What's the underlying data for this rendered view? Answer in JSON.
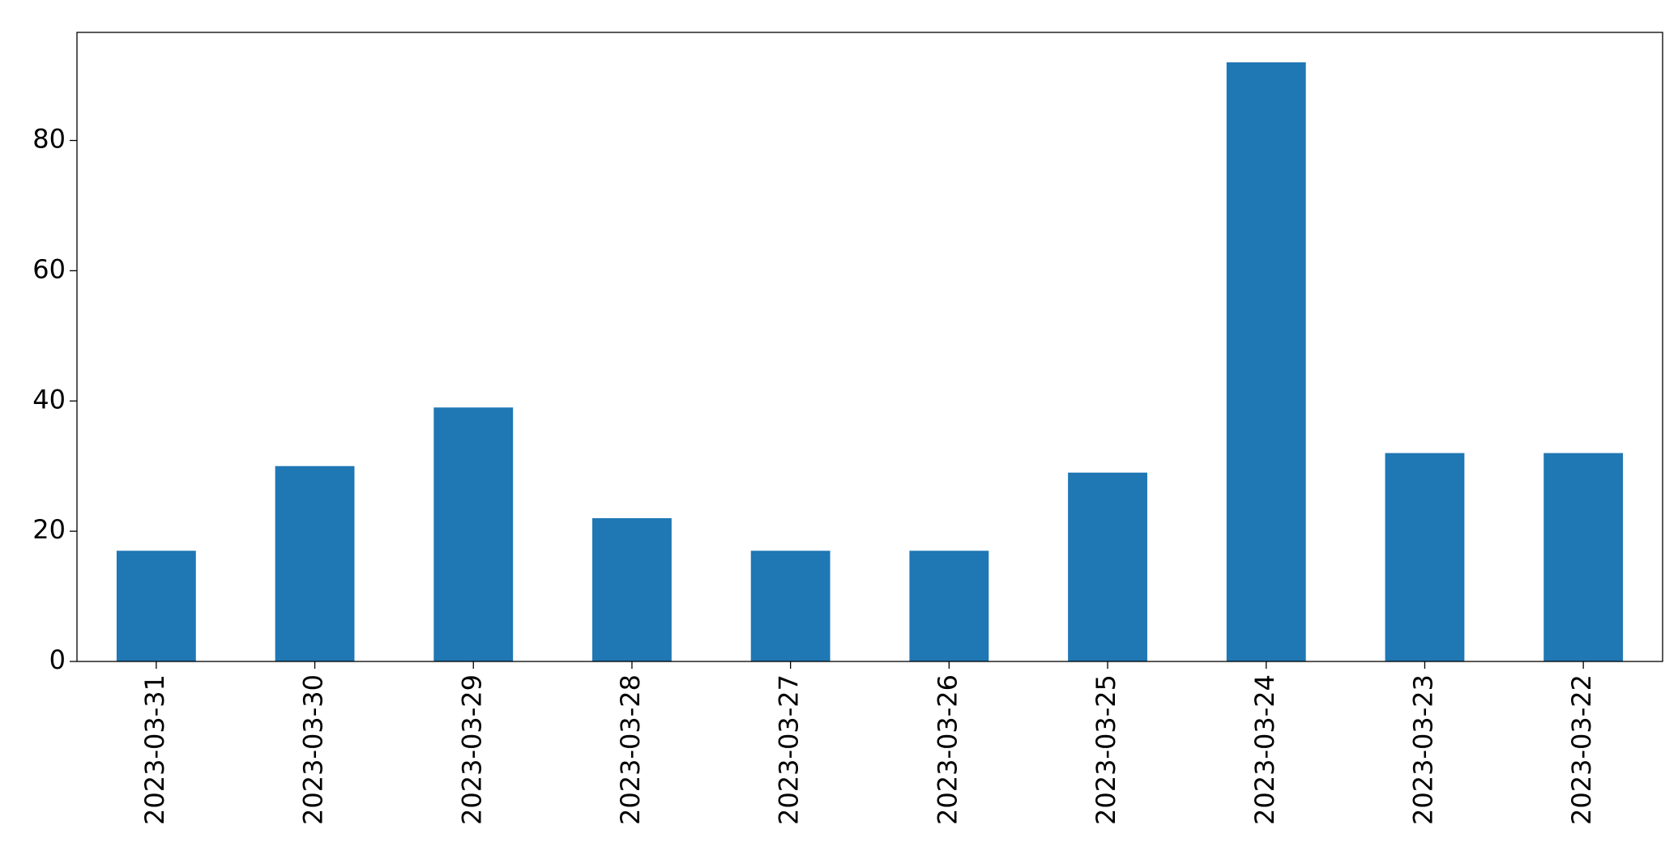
{
  "chart_data": {
    "type": "bar",
    "categories": [
      "2023-03-31",
      "2023-03-30",
      "2023-03-29",
      "2023-03-28",
      "2023-03-27",
      "2023-03-26",
      "2023-03-25",
      "2023-03-24",
      "2023-03-23",
      "2023-03-22"
    ],
    "values": [
      17,
      30,
      39,
      22,
      17,
      17,
      29,
      92,
      32,
      32
    ],
    "color": "#1f77b4",
    "ylim": [
      0,
      96.6
    ],
    "yticks": [
      0,
      20,
      40,
      60,
      80
    ],
    "grid": false
  }
}
